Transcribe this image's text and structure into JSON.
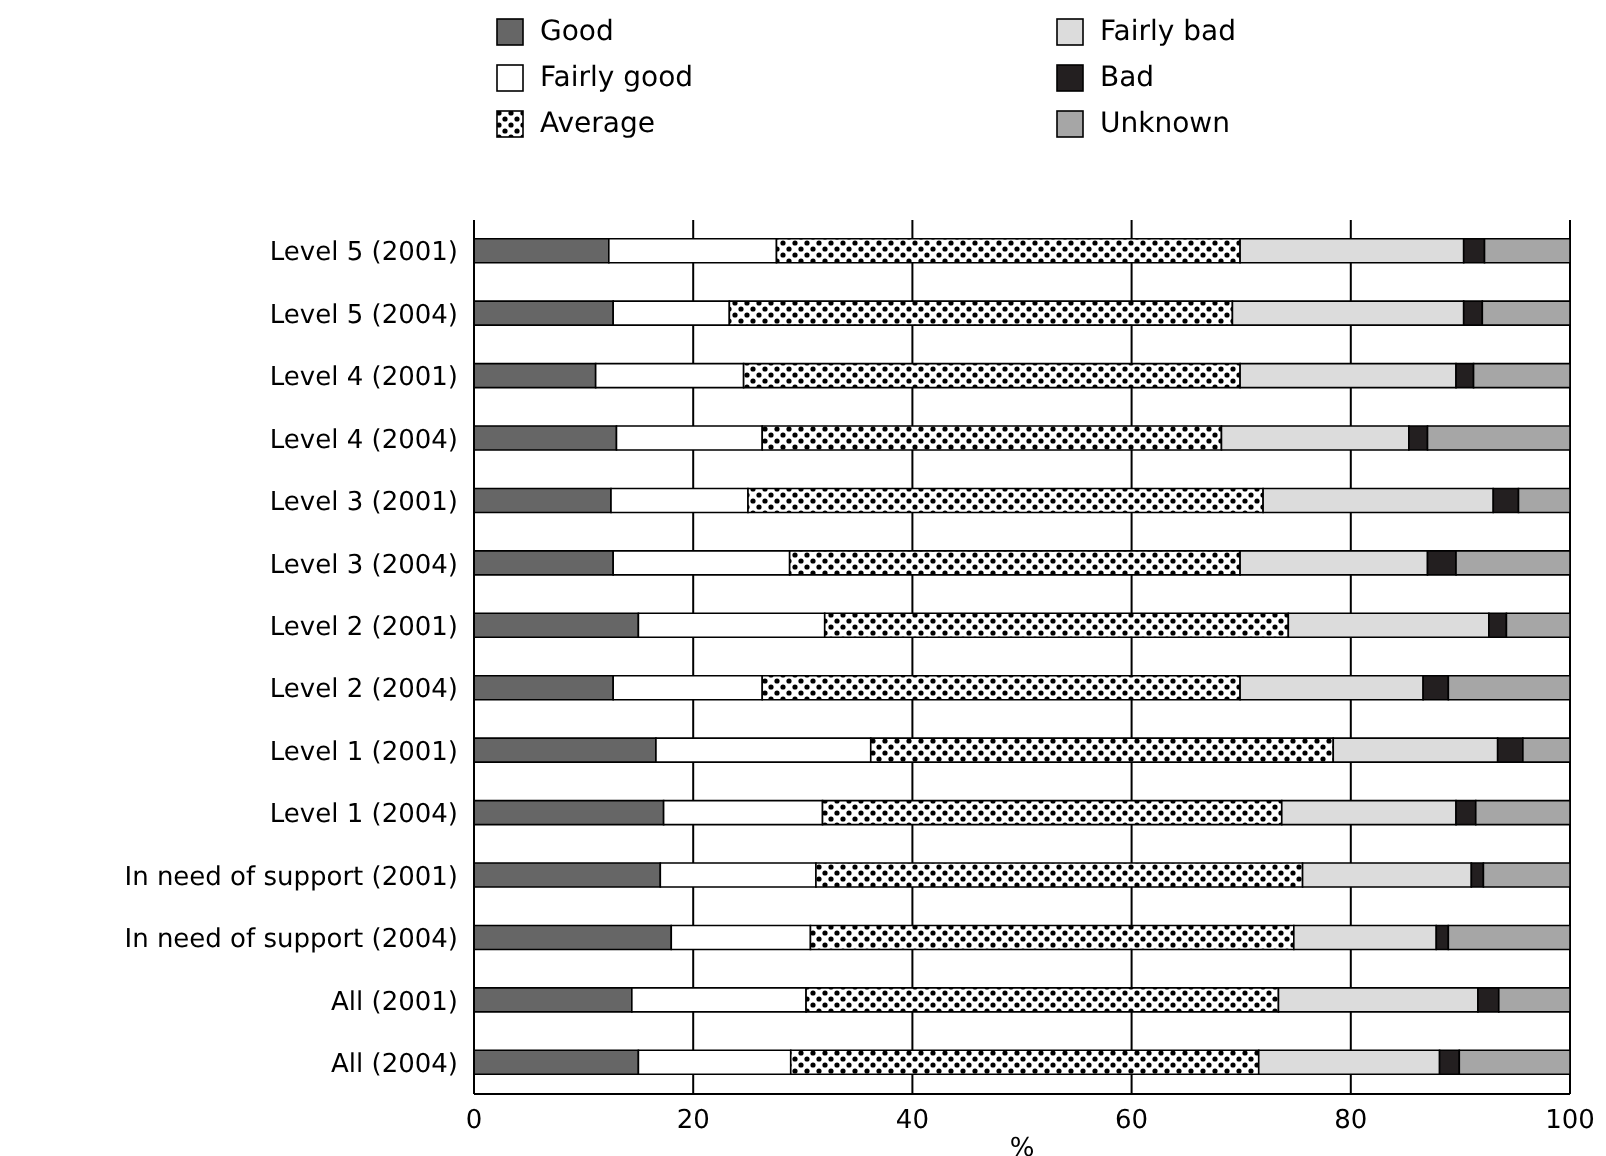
{
  "chart_data": {
    "type": "bar",
    "orientation": "horizontal",
    "stacked": true,
    "xlabel": "%",
    "categories": [
      "Level 5 (2001)",
      "Level 5 (2004)",
      "Level 4 (2001)",
      "Level 4 (2004)",
      "Level 3 (2001)",
      "Level 3 (2004)",
      "Level 2 (2001)",
      "Level 2 (2004)",
      "Level 1 (2001)",
      "Level 1 (2004)",
      "In need of support (2001)",
      "In need of support (2004)",
      "All (2001)",
      "All (2004)"
    ],
    "series": [
      {
        "name": "Good",
        "color": "#666666",
        "values": [
          12.3,
          12.7,
          11.1,
          13.0,
          12.5,
          12.7,
          15.0,
          12.7,
          16.6,
          17.3,
          17.0,
          18.0,
          14.4,
          15.0
        ]
      },
      {
        "name": "Fairly good",
        "color": "#ffffff",
        "values": [
          15.3,
          10.6,
          13.5,
          13.3,
          12.5,
          16.1,
          17.0,
          13.6,
          19.6,
          14.5,
          14.2,
          12.7,
          15.9,
          13.9
        ]
      },
      {
        "name": "Average",
        "color": "#000000",
        "values": [
          42.3,
          45.9,
          45.3,
          41.9,
          47.0,
          41.1,
          42.3,
          43.6,
          42.2,
          41.9,
          44.4,
          44.1,
          43.1,
          42.7
        ]
      },
      {
        "name": "Fairly bad",
        "color": "#dcdcdc",
        "values": [
          20.4,
          21.1,
          19.7,
          17.1,
          21.0,
          17.1,
          18.3,
          16.7,
          15.0,
          15.9,
          15.4,
          13.0,
          18.2,
          16.5
        ]
      },
      {
        "name": "Bad",
        "color": "#231f20",
        "values": [
          1.9,
          1.7,
          1.6,
          1.7,
          2.3,
          2.6,
          1.6,
          2.3,
          2.3,
          1.8,
          1.1,
          1.1,
          1.9,
          1.8
        ]
      },
      {
        "name": "Unknown",
        "color": "#a6a6a6",
        "values": [
          7.8,
          8.0,
          8.8,
          13.0,
          4.7,
          10.4,
          5.8,
          11.1,
          4.3,
          8.6,
          7.9,
          11.1,
          6.5,
          10.1
        ]
      }
    ],
    "xlim": [
      0,
      100
    ],
    "xticks": [
      0,
      20,
      40,
      60,
      80,
      100
    ],
    "grid": "x",
    "legend": "top"
  }
}
